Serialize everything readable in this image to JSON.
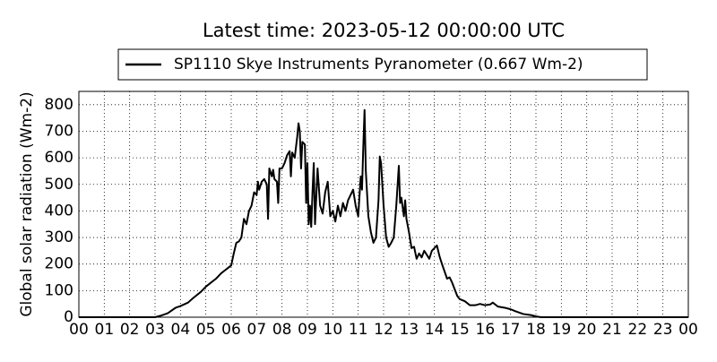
{
  "chart_data": {
    "type": "line",
    "title": "Latest time: 2023-05-12 00:00:00 UTC",
    "ylabel": "Global solar radiation (Wm-2)",
    "x": [
      0,
      3.0,
      3.2,
      3.5,
      3.8,
      4.0,
      4.3,
      4.5,
      4.8,
      5.0,
      5.2,
      5.4,
      5.6,
      5.8,
      6.0,
      6.1,
      6.2,
      6.3,
      6.4,
      6.5,
      6.6,
      6.7,
      6.8,
      6.9,
      7.0,
      7.05,
      7.1,
      7.2,
      7.3,
      7.4,
      7.45,
      7.5,
      7.6,
      7.65,
      7.7,
      7.8,
      7.85,
      7.9,
      8.0,
      8.1,
      8.2,
      8.3,
      8.35,
      8.4,
      8.5,
      8.6,
      8.65,
      8.7,
      8.75,
      8.8,
      8.9,
      8.95,
      9.0,
      9.05,
      9.1,
      9.15,
      9.2,
      9.25,
      9.3,
      9.4,
      9.5,
      9.6,
      9.7,
      9.8,
      9.9,
      10.0,
      10.1,
      10.2,
      10.3,
      10.4,
      10.5,
      10.6,
      10.8,
      10.9,
      11.0,
      11.1,
      11.15,
      11.2,
      11.25,
      11.3,
      11.4,
      11.5,
      11.6,
      11.7,
      11.8,
      11.85,
      11.9,
      12.0,
      12.1,
      12.2,
      12.3,
      12.4,
      12.5,
      12.6,
      12.65,
      12.7,
      12.8,
      12.85,
      12.9,
      13.0,
      13.1,
      13.2,
      13.3,
      13.4,
      13.5,
      13.6,
      13.7,
      13.8,
      13.9,
      14.1,
      14.2,
      14.3,
      14.5,
      14.6,
      14.7,
      14.9,
      15.0,
      15.2,
      15.4,
      15.6,
      15.8,
      16.0,
      16.2,
      16.3,
      16.5,
      16.8,
      17.0,
      17.2,
      17.5,
      17.8,
      18.0,
      18.2,
      24
    ],
    "series": [
      {
        "name": "SP1110 Skye Instruments Pyranometer (0.667 Wm-2)",
        "color": "#000000",
        "values": [
          0,
          0,
          5,
          15,
          35,
          42,
          55,
          72,
          95,
          115,
          130,
          145,
          165,
          180,
          195,
          240,
          280,
          285,
          300,
          370,
          350,
          400,
          420,
          470,
          460,
          510,
          480,
          510,
          520,
          500,
          370,
          560,
          530,
          555,
          520,
          510,
          430,
          560,
          560,
          580,
          610,
          625,
          530,
          620,
          600,
          680,
          730,
          700,
          560,
          660,
          650,
          430,
          580,
          350,
          420,
          340,
          470,
          580,
          350,
          560,
          420,
          390,
          470,
          510,
          380,
          400,
          360,
          420,
          380,
          430,
          400,
          440,
          480,
          420,
          380,
          530,
          480,
          640,
          780,
          550,
          380,
          320,
          280,
          300,
          440,
          605,
          580,
          420,
          300,
          265,
          280,
          300,
          420,
          570,
          430,
          450,
          380,
          440,
          370,
          320,
          260,
          265,
          220,
          240,
          225,
          250,
          235,
          220,
          250,
          270,
          230,
          200,
          145,
          150,
          130,
          80,
          68,
          60,
          45,
          45,
          50,
          45,
          48,
          55,
          40,
          35,
          30,
          22,
          12,
          8,
          3,
          0,
          0
        ]
      }
    ],
    "xlim": [
      0,
      24
    ],
    "xticks": [
      {
        "value": 0,
        "label": "00"
      },
      {
        "value": 1,
        "label": "01"
      },
      {
        "value": 2,
        "label": "02"
      },
      {
        "value": 3,
        "label": "03"
      },
      {
        "value": 4,
        "label": "04"
      },
      {
        "value": 5,
        "label": "05"
      },
      {
        "value": 6,
        "label": "06"
      },
      {
        "value": 7,
        "label": "07"
      },
      {
        "value": 8,
        "label": "08"
      },
      {
        "value": 9,
        "label": "09"
      },
      {
        "value": 10,
        "label": "10"
      },
      {
        "value": 11,
        "label": "11"
      },
      {
        "value": 12,
        "label": "12"
      },
      {
        "value": 13,
        "label": "13"
      },
      {
        "value": 14,
        "label": "14"
      },
      {
        "value": 15,
        "label": "15"
      },
      {
        "value": 16,
        "label": "16"
      },
      {
        "value": 17,
        "label": "17"
      },
      {
        "value": 18,
        "label": "18"
      },
      {
        "value": 19,
        "label": "19"
      },
      {
        "value": 20,
        "label": "20"
      },
      {
        "value": 21,
        "label": "21"
      },
      {
        "value": 22,
        "label": "22"
      },
      {
        "value": 23,
        "label": "23"
      },
      {
        "value": 24,
        "label": "00"
      }
    ],
    "ylim": [
      0,
      850
    ],
    "yticks": [
      0,
      100,
      200,
      300,
      400,
      500,
      600,
      700,
      800
    ],
    "grid": true
  }
}
